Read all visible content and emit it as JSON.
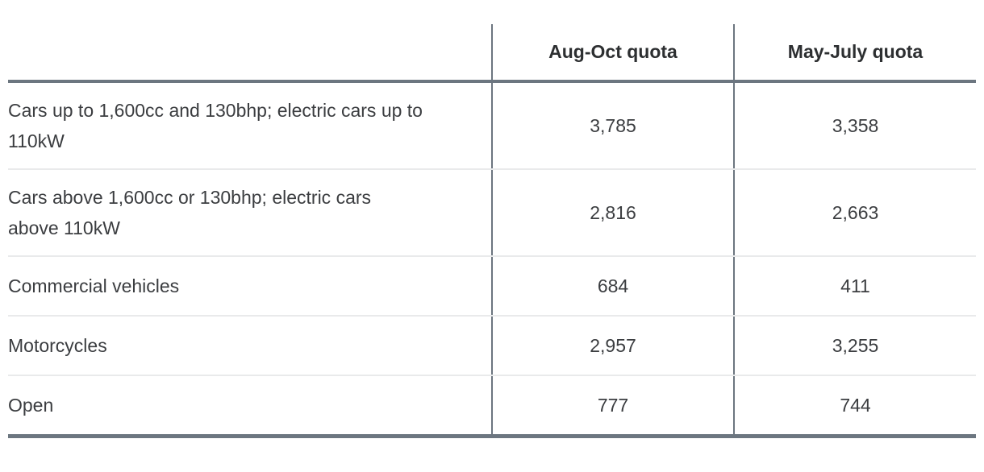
{
  "table": {
    "corner": "",
    "columns": [
      "Aug-Oct quota",
      "May-July quota"
    ],
    "rows": [
      {
        "label": "Cars up to 1,600cc and 130bhp; electric cars up to 110kW",
        "values": [
          "3,785",
          "3,358"
        ]
      },
      {
        "label": "Cars above 1,600cc or 130bhp; electric cars above 110kW",
        "values": [
          "2,816",
          "2,663"
        ]
      },
      {
        "label": "Commercial vehicles",
        "values": [
          "684",
          "411"
        ]
      },
      {
        "label": "Motorcycles",
        "values": [
          "2,957",
          "3,255"
        ]
      },
      {
        "label": "Open",
        "values": [
          "777",
          "744"
        ]
      }
    ]
  },
  "colors": {
    "accent_border": "#6c7680",
    "row_divider": "#e9eaeb",
    "header_text": "#2d2f31",
    "body_text": "#3b3d40"
  },
  "chart_data": {
    "type": "table",
    "columns": [
      "",
      "Aug-Oct quota",
      "May-July quota"
    ],
    "rows": [
      [
        "Cars up to 1,600cc and 130bhp; electric cars up to 110kW",
        3785,
        3358
      ],
      [
        "Cars above 1,600cc or 130bhp; electric cars above 110kW",
        2816,
        2663
      ],
      [
        "Commercial vehicles",
        684,
        411
      ],
      [
        "Motorcycles",
        2957,
        3255
      ],
      [
        "Open",
        777,
        744
      ]
    ]
  }
}
